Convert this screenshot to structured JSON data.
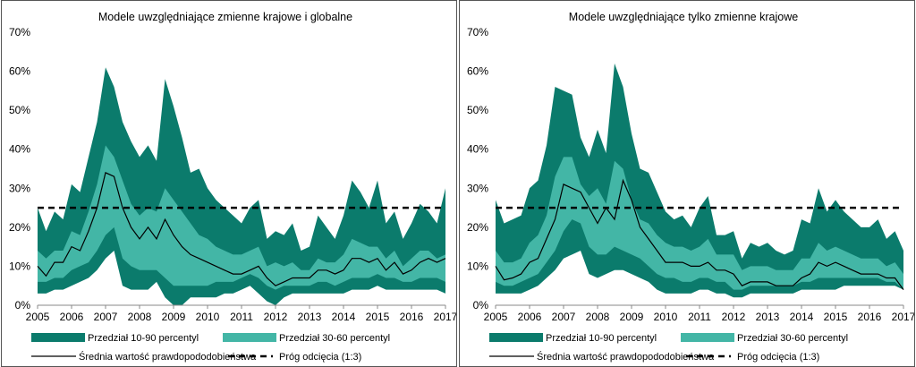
{
  "colors": {
    "outer_band": "#0b7b6c",
    "inner_band": "#43b6a6",
    "line": "#000000",
    "threshold": "#000000"
  },
  "legend": {
    "outer": "Przedział 10-90 percentyl",
    "inner": "Przedział 30-60 percentyl",
    "mean": "Średnia wartość prawdopododobieństwa",
    "threshold": "Próg odcięcia (1:3)"
  },
  "chart_data": [
    {
      "type": "area",
      "title": "Modele uwzględniające zmienne krajowe i globalne",
      "xlim": [
        2005,
        2017
      ],
      "ylim": [
        0,
        70
      ],
      "x_ticks": [
        "2005",
        "2006",
        "2007",
        "2008",
        "2009",
        "2010",
        "2011",
        "2012",
        "2013",
        "2014",
        "2015",
        "2016",
        "2017"
      ],
      "y_ticks": [
        "0%",
        "10%",
        "20%",
        "30%",
        "40%",
        "50%",
        "60%",
        "70%"
      ],
      "threshold": 25,
      "x": [
        2005.0,
        2005.25,
        2005.5,
        2005.75,
        2006.0,
        2006.25,
        2006.5,
        2006.75,
        2007.0,
        2007.25,
        2007.5,
        2007.75,
        2008.0,
        2008.25,
        2008.5,
        2008.75,
        2009.0,
        2009.25,
        2009.5,
        2009.75,
        2010.0,
        2010.25,
        2010.5,
        2010.75,
        2011.0,
        2011.25,
        2011.5,
        2011.75,
        2012.0,
        2012.25,
        2012.5,
        2012.75,
        2013.0,
        2013.25,
        2013.5,
        2013.75,
        2014.0,
        2014.25,
        2014.5,
        2014.75,
        2015.0,
        2015.25,
        2015.5,
        2015.75,
        2016.0,
        2016.25,
        2016.5,
        2016.75,
        2017.0
      ],
      "series": [
        {
          "name": "Przedział 10-90 percentyl",
          "role": "outer_upper",
          "values": [
            25,
            19,
            24,
            22,
            31,
            29,
            38,
            47,
            61,
            56,
            47,
            42,
            38,
            41,
            37,
            58,
            51,
            43,
            34,
            35,
            30,
            27,
            25,
            23,
            21,
            25,
            27,
            17,
            19,
            18,
            21,
            14,
            15,
            23,
            20,
            17,
            23,
            32,
            29,
            25,
            32,
            21,
            24,
            17,
            21,
            26,
            24,
            21,
            30
          ]
        },
        {
          "name": "Przedział 10-90 percentyl",
          "role": "outer_lower",
          "values": [
            3,
            3,
            4,
            4,
            5,
            6,
            7,
            9,
            12,
            14,
            5,
            4,
            4,
            4,
            6,
            2,
            0,
            0,
            2,
            2,
            2,
            2,
            3,
            3,
            4,
            5,
            3,
            1,
            0,
            2,
            3,
            3,
            3,
            3,
            3,
            3,
            3,
            4,
            4,
            4,
            5,
            4,
            4,
            4,
            4,
            4,
            4,
            4,
            3
          ]
        },
        {
          "name": "Przedział 30-60 percentyl",
          "role": "inner_upper",
          "values": [
            14,
            12,
            14,
            14,
            19,
            18,
            24,
            31,
            41,
            38,
            32,
            26,
            23,
            25,
            24,
            30,
            27,
            24,
            21,
            18,
            17,
            15,
            14,
            13,
            13,
            14,
            15,
            10,
            11,
            10,
            11,
            9,
            9,
            12,
            11,
            11,
            13,
            17,
            16,
            15,
            15,
            12,
            14,
            10,
            12,
            14,
            14,
            12,
            13
          ]
        },
        {
          "name": "Przedział 30-60 percentyl",
          "role": "inner_lower",
          "values": [
            6,
            6,
            7,
            7,
            9,
            10,
            11,
            14,
            18,
            20,
            12,
            10,
            9,
            9,
            9,
            7,
            5,
            5,
            5,
            5,
            5,
            6,
            6,
            6,
            7,
            8,
            7,
            5,
            4,
            5,
            5,
            5,
            5,
            6,
            6,
            5,
            6,
            7,
            7,
            7,
            8,
            7,
            7,
            6,
            6,
            7,
            7,
            7,
            6
          ]
        },
        {
          "name": "Średnia wartość prawdopododobieństwa",
          "role": "mean",
          "values": [
            10,
            7.5,
            11,
            11,
            15,
            14,
            19,
            25,
            34,
            33,
            25,
            20,
            17,
            20,
            17,
            22,
            18,
            15,
            13,
            12,
            11,
            10,
            9,
            8,
            8,
            9,
            10,
            7,
            5,
            6,
            7,
            7,
            7,
            9,
            9,
            8,
            9,
            12,
            12,
            11,
            12,
            9,
            11,
            8,
            9,
            11,
            12,
            11,
            12
          ]
        }
      ]
    },
    {
      "type": "area",
      "title": "Modele uwzględniające tylko zmienne krajowe",
      "xlim": [
        2005,
        2017
      ],
      "ylim": [
        0,
        70
      ],
      "x_ticks": [
        "2005",
        "2006",
        "2007",
        "2008",
        "2009",
        "2010",
        "2011",
        "2012",
        "2013",
        "2014",
        "2015",
        "2016",
        "2017"
      ],
      "y_ticks": [
        "0%",
        "10%",
        "20%",
        "30%",
        "40%",
        "50%",
        "60%",
        "70%"
      ],
      "threshold": 25,
      "x": [
        2005.0,
        2005.25,
        2005.5,
        2005.75,
        2006.0,
        2006.25,
        2006.5,
        2006.75,
        2007.0,
        2007.25,
        2007.5,
        2007.75,
        2008.0,
        2008.25,
        2008.5,
        2008.75,
        2009.0,
        2009.25,
        2009.5,
        2009.75,
        2010.0,
        2010.25,
        2010.5,
        2010.75,
        2011.0,
        2011.25,
        2011.5,
        2011.75,
        2012.0,
        2012.25,
        2012.5,
        2012.75,
        2013.0,
        2013.25,
        2013.5,
        2013.75,
        2014.0,
        2014.25,
        2014.5,
        2014.75,
        2015.0,
        2015.25,
        2015.5,
        2015.75,
        2016.0,
        2016.25,
        2016.5,
        2016.75,
        2017.0
      ],
      "series": [
        {
          "name": "Przedział 10-90 percentyl",
          "role": "outer_upper",
          "values": [
            27,
            21,
            22,
            23,
            30,
            32,
            41,
            56,
            55,
            54,
            43,
            38,
            45,
            39,
            62,
            56,
            44,
            35,
            34,
            29,
            24,
            22,
            23,
            20,
            25,
            28,
            18,
            18,
            19,
            12,
            16,
            15,
            16,
            14,
            13,
            14,
            22,
            21,
            30,
            24,
            27,
            24,
            22,
            20,
            20,
            22,
            17,
            19,
            14
          ]
        },
        {
          "name": "Przedział 10-90 percentyl",
          "role": "outer_lower",
          "values": [
            3,
            3,
            3,
            3,
            4,
            5,
            7,
            9,
            12,
            13,
            14,
            8,
            7,
            8,
            9,
            9,
            8,
            7,
            6,
            4,
            3,
            3,
            3,
            3,
            4,
            4,
            3,
            3,
            2,
            2,
            3,
            3,
            3,
            3,
            3,
            3,
            4,
            4,
            4,
            4,
            4,
            5,
            5,
            5,
            5,
            5,
            5,
            5,
            4
          ]
        },
        {
          "name": "Przedział 30-60 percentyl",
          "role": "inner_upper",
          "values": [
            14,
            11,
            11,
            12,
            16,
            18,
            23,
            33,
            38,
            38,
            31,
            28,
            30,
            26,
            37,
            35,
            27,
            22,
            21,
            18,
            16,
            15,
            15,
            14,
            15,
            17,
            13,
            13,
            13,
            9,
            10,
            10,
            10,
            9,
            9,
            9,
            12,
            12,
            16,
            14,
            15,
            14,
            13,
            12,
            12,
            12,
            10,
            11,
            8
          ]
        },
        {
          "name": "Przedział 30-60 percentyl",
          "role": "inner_lower",
          "values": [
            6,
            5,
            5,
            6,
            7,
            8,
            11,
            14,
            19,
            22,
            21,
            15,
            13,
            13,
            15,
            14,
            13,
            12,
            10,
            8,
            7,
            7,
            6,
            6,
            7,
            7,
            6,
            6,
            4,
            4,
            5,
            5,
            5,
            5,
            5,
            5,
            6,
            6,
            7,
            7,
            7,
            7,
            7,
            7,
            7,
            7,
            6,
            6,
            4
          ]
        },
        {
          "name": "Średnia wartość prawdopododobieństwa",
          "role": "mean",
          "values": [
            10,
            6.5,
            7,
            8,
            11,
            12,
            17,
            22,
            31,
            30,
            29,
            25,
            21,
            25,
            22,
            32,
            27,
            20,
            17,
            14,
            11,
            11,
            11,
            10,
            10,
            11,
            9,
            9,
            8,
            5,
            6,
            6,
            6,
            5,
            5,
            5,
            7,
            8,
            11,
            10,
            11,
            10,
            9,
            8,
            8,
            8,
            7,
            7,
            4
          ]
        }
      ]
    }
  ]
}
